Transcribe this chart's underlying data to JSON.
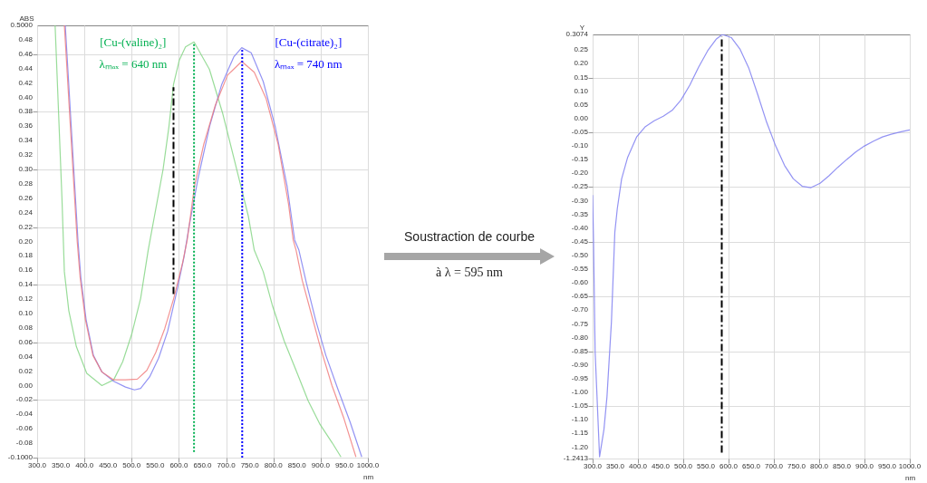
{
  "chart_data": [
    {
      "type": "line",
      "ylabel": "ABS",
      "xlabel": "nm",
      "xlim": [
        300,
        1000
      ],
      "ylim": [
        -0.1,
        0.5
      ],
      "grid": true,
      "marker": "none",
      "xticks": [
        {
          "value": 300,
          "label": "300.0"
        },
        {
          "value": 350,
          "label": "350.0"
        },
        {
          "value": 400,
          "label": "400.0"
        },
        {
          "value": 450,
          "label": "450.0"
        },
        {
          "value": 500,
          "label": "500.0"
        },
        {
          "value": 550,
          "label": "550.0"
        },
        {
          "value": 600,
          "label": "600.0"
        },
        {
          "value": 650,
          "label": "650.0"
        },
        {
          "value": 700,
          "label": "700.0"
        },
        {
          "value": 750,
          "label": "750.0"
        },
        {
          "value": 800,
          "label": "800.0"
        },
        {
          "value": 850,
          "label": "850.0"
        },
        {
          "value": 900,
          "label": "900.0"
        },
        {
          "value": 950,
          "label": "950.0"
        },
        {
          "value": 1000,
          "label": "1000.0"
        }
      ],
      "yticks": [
        {
          "value": -0.1,
          "label": "-0.1000"
        },
        {
          "value": -0.08,
          "label": "-0.08"
        },
        {
          "value": -0.06,
          "label": "-0.06"
        },
        {
          "value": -0.04,
          "label": "-0.04"
        },
        {
          "value": -0.02,
          "label": "-0.02"
        },
        {
          "value": 0,
          "label": "0.00"
        },
        {
          "value": 0.02,
          "label": "0.02"
        },
        {
          "value": 0.04,
          "label": "0.04"
        },
        {
          "value": 0.06,
          "label": "0.06"
        },
        {
          "value": 0.08,
          "label": "0.08"
        },
        {
          "value": 0.1,
          "label": "0.10"
        },
        {
          "value": 0.12,
          "label": "0.12"
        },
        {
          "value": 0.14,
          "label": "0.14"
        },
        {
          "value": 0.16,
          "label": "0.16"
        },
        {
          "value": 0.18,
          "label": "0.18"
        },
        {
          "value": 0.2,
          "label": "0.20"
        },
        {
          "value": 0.22,
          "label": "0.22"
        },
        {
          "value": 0.24,
          "label": "0.24"
        },
        {
          "value": 0.26,
          "label": "0.26"
        },
        {
          "value": 0.28,
          "label": "0.28"
        },
        {
          "value": 0.3,
          "label": "0.30"
        },
        {
          "value": 0.32,
          "label": "0.32"
        },
        {
          "value": 0.34,
          "label": "0.34"
        },
        {
          "value": 0.36,
          "label": "0.36"
        },
        {
          "value": 0.38,
          "label": "0.38"
        },
        {
          "value": 0.4,
          "label": "0.40"
        },
        {
          "value": 0.42,
          "label": "0.42"
        },
        {
          "value": 0.44,
          "label": "0.44"
        },
        {
          "value": 0.46,
          "label": "0.46"
        },
        {
          "value": 0.48,
          "label": "0.48"
        },
        {
          "value": 0.5,
          "label": "0.5000"
        }
      ],
      "series": [
        {
          "color": "#7fd37f",
          "line_style": "solid",
          "x": [
            338,
            352.5,
            357.6,
            367,
            383,
            405,
            437,
            462,
            481,
            500,
            519,
            535,
            566.5,
            579,
            588.6,
            601,
            614,
            632,
            664.6,
            693,
            721.6,
            747,
            759.5,
            778.5,
            797.5,
            822.8,
            848,
            873.5,
            898.8,
            924,
            943
          ],
          "values": [
            0.5,
            0.26,
            0.158,
            0.104,
            0.054,
            0.017,
            0.0,
            0.008,
            0.033,
            0.071,
            0.121,
            0.188,
            0.3,
            0.36,
            0.418,
            0.452,
            0.47,
            0.477,
            0.439,
            0.377,
            0.302,
            0.235,
            0.188,
            0.158,
            0.112,
            0.062,
            0.021,
            -0.021,
            -0.054,
            -0.079,
            -0.099
          ]
        },
        {
          "color": "#7878f0",
          "line_style": "solid",
          "x": [
            359.5,
            386.5,
            392.5,
            403.5,
            419,
            437,
            462,
            487,
            506,
            519,
            538,
            557,
            576,
            595,
            611,
            620.8,
            639.8,
            665,
            690.6,
            716,
            733,
            753,
            778.5,
            803.7,
            829,
            845,
            854,
            870,
            889,
            911,
            936,
            962,
            987
          ],
          "values": [
            0.5,
            0.2,
            0.15,
            0.092,
            0.042,
            0.019,
            0.006,
            -0.002,
            -0.006,
            -0.004,
            0.012,
            0.038,
            0.075,
            0.129,
            0.179,
            0.218,
            0.285,
            0.36,
            0.418,
            0.456,
            0.469,
            0.462,
            0.422,
            0.36,
            0.277,
            0.202,
            0.188,
            0.142,
            0.092,
            0.042,
            -0.004,
            -0.05,
            -0.099
          ]
        },
        {
          "color": "#f07878",
          "line_style": "solid",
          "x": [
            357.6,
            384.8,
            391,
            402,
            418,
            437,
            462,
            487,
            512,
            532,
            551,
            570,
            589,
            608,
            617.6,
            633,
            652.6,
            677,
            703,
            733,
            759.5,
            784.7,
            810,
            832,
            841.9,
            848,
            861,
            880,
            899,
            924,
            949.4,
            974.7
          ],
          "values": [
            0.5,
            0.2,
            0.15,
            0.092,
            0.042,
            0.019,
            0.008,
            0.008,
            0.009,
            0.021,
            0.046,
            0.079,
            0.121,
            0.171,
            0.202,
            0.277,
            0.335,
            0.389,
            0.431,
            0.45,
            0.435,
            0.398,
            0.335,
            0.252,
            0.202,
            0.188,
            0.146,
            0.1,
            0.054,
            0.0,
            -0.046,
            -0.099
          ]
        },
        {
          "color": "#00b050",
          "line_style": "dotted",
          "x": [
            632,
            632
          ],
          "values": [
            -0.092,
            0.475
          ]
        },
        {
          "color": "#0000ff",
          "line_style": "dotted",
          "x": [
            734,
            734
          ],
          "values": [
            -0.1,
            0.468
          ]
        },
        {
          "color": "#000000",
          "line_style": "dashed",
          "x": [
            588.6,
            588.6
          ],
          "values": [
            0.127,
            0.414
          ]
        }
      ],
      "annotations": [
        "[Cu-(valine)₂]",
        "λₘₐₓ = 640 nm",
        "[Cu-(citrate)₂]",
        "λₘₐₓ = 740 nm"
      ]
    },
    {
      "type": "other",
      "annotations": [
        "Soustraction de courbe",
        "à λ = 595 nm"
      ]
    },
    {
      "type": "line",
      "ylabel": "Y",
      "xlabel": "nm",
      "xlim": [
        300,
        1000
      ],
      "ylim": [
        -1.2413,
        0.3074
      ],
      "grid": true,
      "marker": "none",
      "xticks": [
        {
          "value": 300,
          "label": "300.0"
        },
        {
          "value": 350,
          "label": "350.0"
        },
        {
          "value": 400,
          "label": "400.0"
        },
        {
          "value": 450,
          "label": "450.0"
        },
        {
          "value": 500,
          "label": "500.0"
        },
        {
          "value": 550,
          "label": "550.0"
        },
        {
          "value": 600,
          "label": "600.0"
        },
        {
          "value": 650,
          "label": "650.0"
        },
        {
          "value": 700,
          "label": "700.0"
        },
        {
          "value": 750,
          "label": "750.0"
        },
        {
          "value": 800,
          "label": "800.0"
        },
        {
          "value": 850,
          "label": "850.0"
        },
        {
          "value": 900,
          "label": "900.0"
        },
        {
          "value": 950,
          "label": "950.0"
        },
        {
          "value": 1000,
          "label": "1000.0"
        }
      ],
      "yticks": [
        {
          "value": -1.2413,
          "label": "-1.2413"
        },
        {
          "value": -1.2,
          "label": "-1.20"
        },
        {
          "value": -1.15,
          "label": "-1.15"
        },
        {
          "value": -1.1,
          "label": "-1.10"
        },
        {
          "value": -1.05,
          "label": "-1.05"
        },
        {
          "value": -1,
          "label": "-1.00"
        },
        {
          "value": -0.95,
          "label": "-0.95"
        },
        {
          "value": -0.9,
          "label": "-0.90"
        },
        {
          "value": -0.85,
          "label": "-0.85"
        },
        {
          "value": -0.8,
          "label": "-0.80"
        },
        {
          "value": -0.75,
          "label": "-0.75"
        },
        {
          "value": -0.7,
          "label": "-0.70"
        },
        {
          "value": -0.65,
          "label": "-0.65"
        },
        {
          "value": -0.6,
          "label": "-0.60"
        },
        {
          "value": -0.55,
          "label": "-0.55"
        },
        {
          "value": -0.5,
          "label": "-0.50"
        },
        {
          "value": -0.45,
          "label": "-0.45"
        },
        {
          "value": -0.4,
          "label": "-0.40"
        },
        {
          "value": -0.35,
          "label": "-0.35"
        },
        {
          "value": -0.3,
          "label": "-0.30"
        },
        {
          "value": -0.25,
          "label": "-0.25"
        },
        {
          "value": -0.2,
          "label": "-0.20"
        },
        {
          "value": -0.15,
          "label": "-0.15"
        },
        {
          "value": -0.1,
          "label": "-0.10"
        },
        {
          "value": -0.05,
          "label": "-0.05"
        },
        {
          "value": 0,
          "label": "0.00"
        },
        {
          "value": 0.05,
          "label": "0.05"
        },
        {
          "value": 0.1,
          "label": "0.10"
        },
        {
          "value": 0.15,
          "label": "0.15"
        },
        {
          "value": 0.2,
          "label": "0.20"
        },
        {
          "value": 0.25,
          "label": "0.25"
        },
        {
          "value": 0.3074,
          "label": "0.3074"
        }
      ],
      "series": [
        {
          "color": "#7878f0",
          "line_style": "solid",
          "x": [
            300,
            302,
            305.5,
            315.3,
            325,
            331.7,
            341.5,
            349,
            354.5,
            364,
            377,
            397,
            416.5,
            436,
            456,
            475.4,
            495,
            514.7,
            534,
            554,
            573.3,
            586.2,
            606,
            625.5,
            645,
            665,
            684,
            704,
            723.6,
            743,
            762.6,
            782,
            802,
            821.6,
            841,
            861,
            880.6,
            900,
            920,
            939.6,
            959,
            978.8,
            1000
          ],
          "values": [
            -0.279,
            -0.45,
            -0.851,
            -1.235,
            -1.135,
            -1.015,
            -0.742,
            -0.415,
            -0.328,
            -0.22,
            -0.143,
            -0.067,
            -0.029,
            -0.008,
            0.009,
            0.03,
            0.068,
            0.123,
            0.188,
            0.248,
            0.291,
            0.3074,
            0.296,
            0.253,
            0.183,
            0.085,
            -0.013,
            -0.1,
            -0.171,
            -0.22,
            -0.247,
            -0.252,
            -0.236,
            -0.209,
            -0.178,
            -0.149,
            -0.122,
            -0.1,
            -0.082,
            -0.067,
            -0.057,
            -0.049,
            -0.041
          ]
        },
        {
          "color": "#000000",
          "line_style": "dashed",
          "x": [
            585,
            585
          ],
          "values": [
            -1.22,
            0.3
          ]
        }
      ]
    }
  ]
}
